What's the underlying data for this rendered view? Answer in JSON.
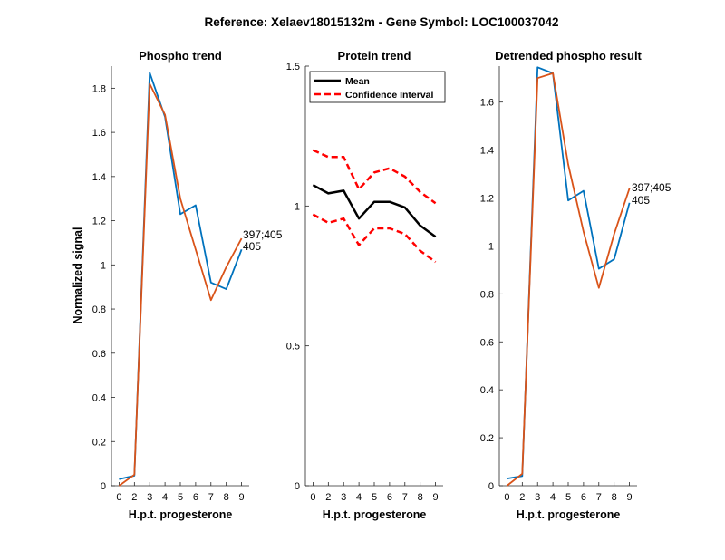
{
  "figure_title": "Reference:  Xelaev18015132m - Gene Symbol:  LOC100037042",
  "colors": {
    "blue": "#0072BD",
    "orange": "#D95319",
    "black": "#000000",
    "red": "#FF0000"
  },
  "chart_data": [
    {
      "type": "line",
      "title": "Phospho trend",
      "xlabel": "H.p.t. progesterone",
      "ylabel": "Normalized signal",
      "categories": [
        "0",
        "2",
        "3",
        "4",
        "5",
        "6",
        "7",
        "8",
        "9"
      ],
      "xlim": [
        -0.5,
        8.5
      ],
      "ylim": [
        0,
        1.9
      ],
      "yticks": [
        0,
        0.2,
        0.4,
        0.6,
        0.8,
        1,
        1.2,
        1.4,
        1.6,
        1.8
      ],
      "series": [
        {
          "name": "405",
          "color": "#0072BD",
          "values": [
            0.03,
            0.045,
            1.87,
            1.67,
            1.23,
            1.27,
            0.92,
            0.89,
            1.07
          ]
        },
        {
          "name": "397;405",
          "color": "#D95319",
          "values": [
            0.0,
            0.05,
            1.82,
            1.68,
            1.3,
            1.07,
            0.84,
            0.99,
            1.12
          ]
        }
      ],
      "annotations": [
        "397;405",
        "405"
      ]
    },
    {
      "type": "line",
      "title": "Protein trend",
      "xlabel": "H.p.t. progesterone",
      "ylabel": "",
      "categories": [
        "0",
        "2",
        "3",
        "4",
        "5",
        "6",
        "7",
        "8",
        "9"
      ],
      "xlim": [
        -0.5,
        8.5
      ],
      "ylim": [
        0,
        1.5
      ],
      "yticks": [
        0,
        0.5,
        1,
        1.5
      ],
      "legend": {
        "position": "top-left",
        "entries": [
          "Mean",
          "Confidence Interval"
        ]
      },
      "series": [
        {
          "name": "Mean",
          "color": "#000000",
          "style": "solid",
          "values": [
            1.075,
            1.045,
            1.055,
            0.955,
            1.015,
            1.015,
            0.995,
            0.93,
            0.89
          ]
        },
        {
          "name": "Confidence Interval",
          "color": "#FF0000",
          "style": "dashed",
          "values": [
            1.2,
            1.175,
            1.175,
            1.06,
            1.12,
            1.135,
            1.105,
            1.05,
            1.01
          ]
        },
        {
          "name": "Confidence Interval",
          "color": "#FF0000",
          "style": "dashed",
          "values": [
            0.97,
            0.94,
            0.955,
            0.86,
            0.92,
            0.92,
            0.9,
            0.84,
            0.8
          ]
        }
      ]
    },
    {
      "type": "line",
      "title": "Detrended phospho result",
      "xlabel": "H.p.t. progesterone",
      "ylabel": "",
      "categories": [
        "0",
        "2",
        "3",
        "4",
        "5",
        "6",
        "7",
        "8",
        "9"
      ],
      "xlim": [
        -0.5,
        8.5
      ],
      "ylim": [
        0,
        1.75
      ],
      "yticks": [
        0,
        0.2,
        0.4,
        0.6,
        0.8,
        1,
        1.2,
        1.4,
        1.6
      ],
      "series": [
        {
          "name": "405",
          "color": "#0072BD",
          "values": [
            0.03,
            0.04,
            1.745,
            1.72,
            1.19,
            1.23,
            0.905,
            0.945,
            1.18
          ]
        },
        {
          "name": "397;405",
          "color": "#D95319",
          "values": [
            0.0,
            0.05,
            1.7,
            1.72,
            1.34,
            1.06,
            0.825,
            1.05,
            1.24
          ]
        }
      ],
      "annotations": [
        "397;405",
        "405"
      ]
    }
  ]
}
